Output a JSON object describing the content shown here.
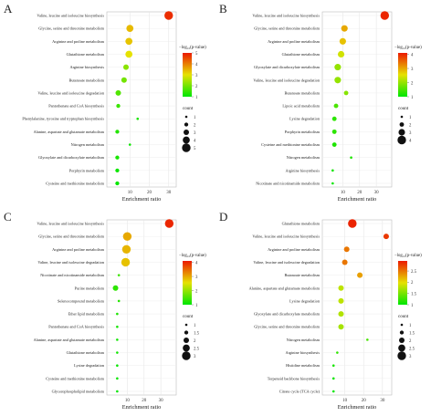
{
  "chart_data": [
    {
      "panel": "A",
      "type": "scatter",
      "xlabel": "Enrichment ratio",
      "xticks": [
        10,
        20,
        30
      ],
      "xlim": [
        0,
        32
      ],
      "categories": [
        "Valine, leucine and isoleucine biosynthesis",
        "Glycine, serine and threonine metabolism",
        "Arginine and proline metabolism",
        "Glutathione metabolism",
        "Arginine biosynthesis",
        "Butanoate metabolism",
        "Valine, leucine and isoleucine degradation",
        "Pantothenate and CoA biosynthesis",
        "Phenylalanine, tyrosine and tryptophan biosynthesis",
        "Alanine, aspartate and glutamate metabolism",
        "Nitrogen metabolism",
        "Glyoxylate and dicarboxylate metabolism",
        "Porphyrin metabolism",
        "Cysteine and methionine metabolism"
      ],
      "enrichment_ratio": [
        30,
        10,
        9.5,
        9.5,
        8,
        7,
        4,
        4,
        14,
        3.5,
        10,
        3.5,
        3.5,
        3.5
      ],
      "count": [
        5,
        4,
        4,
        4,
        3,
        3,
        3,
        2,
        1,
        2,
        1,
        2,
        2,
        2
      ],
      "neglog10_p": [
        4.8,
        3.4,
        3.3,
        3.0,
        2.2,
        2.0,
        1.7,
        1.5,
        1.2,
        1.3,
        1.1,
        1.2,
        1.1,
        1.05
      ],
      "color_legend": {
        "title": "−log₁₀(p-value)",
        "ticks": [
          1,
          2,
          3,
          4,
          5
        ],
        "min": 1,
        "max": 5
      },
      "size_legend": {
        "title": "count",
        "values": [
          1,
          2,
          3,
          4,
          5
        ]
      }
    },
    {
      "panel": "B",
      "type": "scatter",
      "xlabel": "Enrichment ratio",
      "xticks": [
        10,
        20,
        30
      ],
      "xlim": [
        0,
        37
      ],
      "categories": [
        "Valine, leucine and isoleucine biosynthesis",
        "Glycine, serine and threonine metabolism",
        "Arginine and proline metabolism",
        "Glutathione metabolism",
        "Glyoxylate and dicarboxylate metabolism",
        "Valine, leucine and isoleucine degradation",
        "Butanoate metabolism",
        "Lipoic acid metabolism",
        "Lysine degradation",
        "Porphyrin metabolism",
        "Cysteine and methionine metabolism",
        "Nitrogen metabolism",
        "Arginine biosynthesis",
        "Nicotinate and nicotinamide metabolism"
      ],
      "enrichment_ratio": [
        35,
        11,
        10,
        9,
        7,
        7,
        12,
        6,
        5,
        5,
        5,
        15,
        4,
        4
      ],
      "count": [
        4,
        3,
        3,
        3,
        3,
        3,
        2,
        2,
        2,
        2,
        2,
        1,
        1,
        1
      ],
      "neglog10_p": [
        4.0,
        3.0,
        2.8,
        2.4,
        2.0,
        2.0,
        1.9,
        1.5,
        1.3,
        1.3,
        1.2,
        1.2,
        1.1,
        1.05
      ],
      "color_legend": {
        "title": "−log₁₀(p-value)",
        "ticks": [
          1,
          2,
          3,
          4
        ],
        "min": 1,
        "max": 4.1
      },
      "size_legend": {
        "title": "count",
        "values": [
          1,
          2,
          3,
          4
        ]
      }
    },
    {
      "panel": "C",
      "type": "scatter",
      "xlabel": "Enrichment ratio",
      "xticks": [
        10,
        20,
        30
      ],
      "xlim": [
        0,
        37
      ],
      "categories": [
        "Valine, leucine and isoleucine biosynthesis",
        "Glycine, serine and threonine metabolism",
        "Arginine and proline metabolism",
        "Valine, leucine and isoleucine degradation",
        "Nicotinate and nicotinamide metabolism",
        "Purine metabolism",
        "Selenocompound metabolism",
        "Ether lipid metabolism",
        "Pantothenate and CoA biosynthesis",
        "Alanine, aspartate and glutamate metabolism",
        "Glutathione metabolism",
        "Lysine degradation",
        "Cysteine and methionine metabolism",
        "Glycerophospholipid metabolism"
      ],
      "enrichment_ratio": [
        35,
        10,
        9.5,
        9,
        5,
        3,
        5,
        4,
        4,
        4,
        4,
        4,
        4,
        4
      ],
      "count": [
        3,
        3,
        3,
        3,
        1,
        2,
        1,
        1,
        1,
        1,
        1,
        1,
        1,
        1
      ],
      "neglog10_p": [
        4.0,
        3.0,
        2.9,
        2.8,
        1.4,
        1.3,
        1.25,
        1.2,
        1.15,
        1.1,
        1.1,
        1.05,
        1.05,
        1.0
      ],
      "color_legend": {
        "title": "−log₁₀(p-value)",
        "ticks": [
          1,
          2,
          3,
          4
        ],
        "min": 1,
        "max": 4.1
      },
      "size_legend": {
        "title": "count",
        "values": [
          1.0,
          1.5,
          2.0,
          2.5,
          3.0
        ]
      }
    },
    {
      "panel": "D",
      "type": "scatter",
      "xlabel": "Enrichment ratio",
      "xticks": [
        10,
        20,
        30
      ],
      "xlim": [
        0,
        33
      ],
      "categories": [
        "Glutathione metabolism",
        "Valine, leucine and isoleucine biosynthesis",
        "Arginine and proline metabolism",
        "Valine, leucine and isoleucine degradation",
        "Butanoate metabolism",
        "Alanine, aspartate and glutamate metabolism",
        "Lysine degradation",
        "Glyoxylate and dicarboxylate metabolism",
        "Glycine, serine and threonine metabolism",
        "Nitrogen metabolism",
        "Arginine biosynthesis",
        "Histidine metabolism",
        "Terpenoid backbone biosynthesis",
        "Citrate cycle (TCA cycle)"
      ],
      "enrichment_ratio": [
        14,
        32,
        11,
        10,
        18,
        8,
        8,
        8,
        8,
        22,
        6,
        4,
        4,
        4
      ],
      "count": [
        3,
        2,
        2,
        2,
        2,
        2,
        2,
        2,
        2,
        1,
        1,
        1,
        1,
        1
      ],
      "neglog10_p": [
        2.9,
        2.8,
        2.5,
        2.5,
        2.3,
        1.8,
        1.8,
        1.75,
        1.7,
        1.3,
        1.2,
        1.1,
        1.05,
        1.0
      ],
      "color_legend": {
        "title": "−log₁₀(p-value)",
        "ticks": [
          1.0,
          1.5,
          2.0,
          2.5
        ],
        "min": 1,
        "max": 2.95
      },
      "size_legend": {
        "title": "count",
        "values": [
          1.0,
          1.5,
          2.0,
          2.5,
          3.0
        ]
      }
    }
  ]
}
